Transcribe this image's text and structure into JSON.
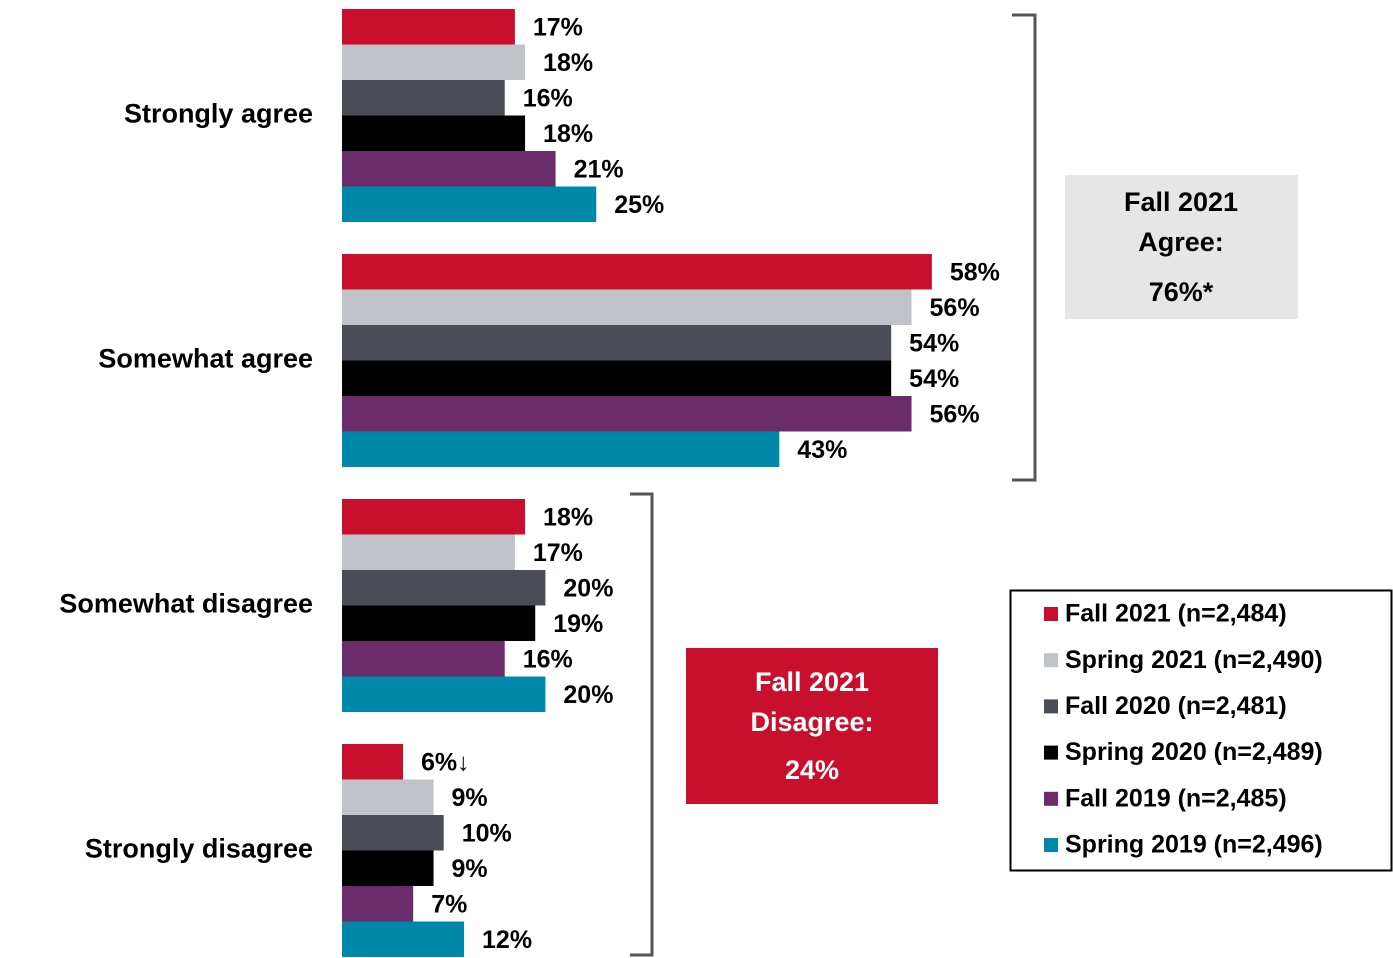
{
  "chart_data": {
    "type": "hbar",
    "categories": [
      "Strongly agree",
      "Somewhat agree",
      "Somewhat disagree",
      "Strongly disagree"
    ],
    "series": [
      {
        "name": "Fall 2021 (n=2,484)",
        "color": "#c8102e",
        "values": [
          17,
          58,
          18,
          6
        ],
        "value_labels": [
          "17%",
          "58%",
          "18%",
          "6%↓"
        ]
      },
      {
        "name": "Spring 2021 (n=2,490)",
        "color": "#bfc3c7",
        "values": [
          18,
          56,
          17,
          9
        ],
        "value_labels": [
          "18%",
          "56%",
          "17%",
          "9%"
        ]
      },
      {
        "name": "Fall 2020 (n=2,481)",
        "color": "#4a4d55",
        "values": [
          16,
          54,
          20,
          10
        ],
        "value_labels": [
          "16%",
          "54%",
          "20%",
          "10%"
        ]
      },
      {
        "name": "Spring 2020 (n=2,489)",
        "color": "#000000",
        "values": [
          18,
          54,
          19,
          9
        ],
        "value_labels": [
          "18%",
          "54%",
          "19%",
          "9%"
        ]
      },
      {
        "name": "Fall 2019 (n=2,485)",
        "color": "#6a2c6b",
        "values": [
          21,
          56,
          16,
          7
        ],
        "value_labels": [
          "21%",
          "56%",
          "16%",
          "7%"
        ]
      },
      {
        "name": "Spring 2019 (n=2,496)",
        "color": "#0088aa",
        "values": [
          25,
          43,
          20,
          12
        ],
        "value_labels": [
          "25%",
          "43%",
          "20%",
          "12%"
        ]
      }
    ],
    "annotations": [
      {
        "lines": [
          "Fall 2021",
          "Agree:",
          "76%*"
        ]
      },
      {
        "lines": [
          "Fall 2021",
          "Disagree:",
          "24%"
        ]
      }
    ],
    "legend": "right"
  }
}
